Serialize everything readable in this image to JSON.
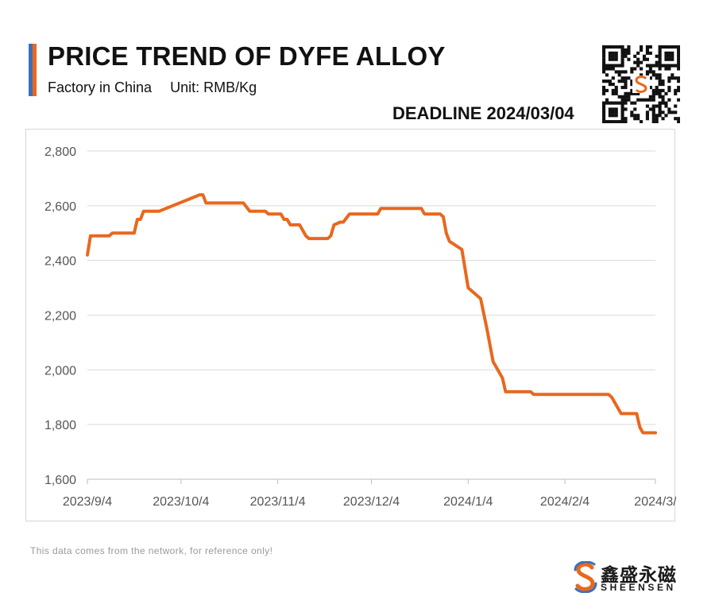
{
  "header": {
    "title": "PRICE TREND OF DYFE ALLOY",
    "subtitle_left": "Factory in China",
    "subtitle_right": "Unit: RMB/Kg",
    "deadline": "DEADLINE 2024/03/04"
  },
  "colors": {
    "line": "#E8681E",
    "accent_left": "#3D6FB8",
    "accent_right": "#E8681E",
    "grid": "#d9d9d9",
    "axis_text": "#555555"
  },
  "footer": {
    "note": "This data comes from the network, for reference only!",
    "brand_cn": "鑫盛永磁",
    "brand_en": "SHEENSEN"
  },
  "chart_data": {
    "type": "line",
    "title": "PRICE TREND OF DYFE ALLOY",
    "ylim": [
      1600,
      2800
    ],
    "yticks": [
      1600,
      1800,
      2000,
      2200,
      2400,
      2600,
      2800
    ],
    "ytick_labels": [
      "1,600",
      "1,800",
      "2,000",
      "2,200",
      "2,400",
      "2,600",
      "2,800"
    ],
    "xlim": [
      "2023-09-04",
      "2024-03-04"
    ],
    "xticks": [
      "2023-09-04",
      "2023-10-04",
      "2023-11-04",
      "2023-12-04",
      "2024-01-04",
      "2024-02-04",
      "2024-03-04"
    ],
    "xtick_labels": [
      "2023/9/4",
      "2023/10/4",
      "2023/11/4",
      "2023/12/4",
      "2024/1/4",
      "2024/2/4",
      "2024/3/"
    ],
    "grid": true,
    "series": [
      {
        "points": [
          [
            "2023-09-04",
            2420
          ],
          [
            "2023-09-05",
            2490
          ],
          [
            "2023-09-11",
            2490
          ],
          [
            "2023-09-12",
            2500
          ],
          [
            "2023-09-19",
            2500
          ],
          [
            "2023-09-20",
            2550
          ],
          [
            "2023-09-21",
            2550
          ],
          [
            "2023-09-22",
            2580
          ],
          [
            "2023-09-27",
            2580
          ],
          [
            "2023-10-10",
            2640
          ],
          [
            "2023-10-11",
            2640
          ],
          [
            "2023-10-12",
            2610
          ],
          [
            "2023-10-24",
            2610
          ],
          [
            "2023-10-26",
            2580
          ],
          [
            "2023-10-31",
            2580
          ],
          [
            "2023-11-01",
            2570
          ],
          [
            "2023-11-05",
            2570
          ],
          [
            "2023-11-06",
            2550
          ],
          [
            "2023-11-07",
            2550
          ],
          [
            "2023-11-08",
            2530
          ],
          [
            "2023-11-11",
            2530
          ],
          [
            "2023-11-13",
            2490
          ],
          [
            "2023-11-14",
            2480
          ],
          [
            "2023-11-20",
            2480
          ],
          [
            "2023-11-21",
            2490
          ],
          [
            "2023-11-22",
            2530
          ],
          [
            "2023-11-24",
            2540
          ],
          [
            "2023-11-25",
            2540
          ],
          [
            "2023-11-27",
            2570
          ],
          [
            "2023-12-06",
            2570
          ],
          [
            "2023-12-07",
            2590
          ],
          [
            "2023-12-20",
            2590
          ],
          [
            "2023-12-21",
            2570
          ],
          [
            "2023-12-26",
            2570
          ],
          [
            "2023-12-27",
            2560
          ],
          [
            "2023-12-28",
            2500
          ],
          [
            "2023-12-29",
            2470
          ],
          [
            "2024-01-02",
            2440
          ],
          [
            "2024-01-04",
            2300
          ],
          [
            "2024-01-08",
            2260
          ],
          [
            "2024-01-10",
            2150
          ],
          [
            "2024-01-12",
            2030
          ],
          [
            "2024-01-15",
            1970
          ],
          [
            "2024-01-16",
            1920
          ],
          [
            "2024-01-24",
            1920
          ],
          [
            "2024-01-25",
            1910
          ],
          [
            "2024-02-18",
            1910
          ],
          [
            "2024-02-19",
            1900
          ],
          [
            "2024-02-22",
            1840
          ],
          [
            "2024-02-27",
            1840
          ],
          [
            "2024-02-28",
            1790
          ],
          [
            "2024-02-29",
            1770
          ],
          [
            "2024-03-04",
            1770
          ]
        ]
      }
    ]
  }
}
